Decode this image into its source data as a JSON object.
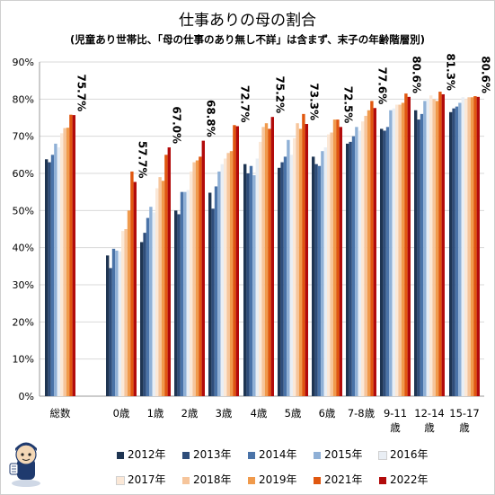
{
  "chart_data": {
    "type": "bar",
    "title": "仕事ありの母の割合",
    "subtitle": "(児童あり世帯比、「母の仕事のあり無し不詳」は含まず、末子の年齢階層別)",
    "ylim": [
      0,
      90
    ],
    "yticks": [
      "0%",
      "10%",
      "20%",
      "30%",
      "40%",
      "50%",
      "60%",
      "70%",
      "80%",
      "90%"
    ],
    "grid": true,
    "legend_placement": "bottom",
    "categories": [
      "総数",
      "0歳",
      "1歳",
      "2歳",
      "3歳",
      "4歳",
      "5歳",
      "6歳",
      "7-8歳",
      "9-11歳",
      "12-14歳",
      "15-17歳"
    ],
    "category_labels": [
      [
        "総数"
      ],
      [
        "0歳"
      ],
      [
        "1歳"
      ],
      [
        "2歳"
      ],
      [
        "3歳"
      ],
      [
        "4歳"
      ],
      [
        "5歳"
      ],
      [
        "6歳"
      ],
      [
        "7-8歳"
      ],
      [
        "9-11",
        "歳"
      ],
      [
        "12-14",
        "歳"
      ],
      [
        "15-17",
        "歳"
      ]
    ],
    "series": [
      {
        "name": "2012年",
        "color": "#1f3552",
        "values": [
          63.8,
          37.9,
          41.5,
          50.0,
          54.8,
          62.5,
          61.5,
          64.5,
          68.0,
          72.0,
          77.0,
          76.5
        ]
      },
      {
        "name": "2013年",
        "color": "#2e4d7a",
        "values": [
          63.0,
          34.5,
          44.0,
          49.0,
          50.5,
          60.0,
          63.0,
          62.5,
          68.5,
          71.5,
          74.5,
          77.5
        ]
      },
      {
        "name": "2014年",
        "color": "#4a73a8",
        "values": [
          65.0,
          39.7,
          48.0,
          55.0,
          56.5,
          62.0,
          64.5,
          62.0,
          70.0,
          72.5,
          76.0,
          78.0
        ]
      },
      {
        "name": "2015年",
        "color": "#8fb0d6",
        "values": [
          68.0,
          39.2,
          51.0,
          55.0,
          60.5,
          59.5,
          69.0,
          66.0,
          72.5,
          77.0,
          79.5,
          79.0
        ]
      },
      {
        "name": "2016年",
        "color": "#e9eef4",
        "values": [
          67.0,
          39.0,
          49.5,
          55.5,
          62.5,
          64.0,
          65.0,
          67.0,
          71.5,
          77.5,
          80.0,
          80.5
        ]
      },
      {
        "name": "2017年",
        "color": "#fbe8d7",
        "values": [
          70.8,
          44.5,
          56.0,
          60.5,
          64.0,
          68.5,
          69.5,
          70.5,
          74.0,
          78.5,
          81.0,
          80.0
        ]
      },
      {
        "name": "2018年",
        "color": "#f6c59b",
        "values": [
          72.2,
          45.0,
          59.0,
          63.0,
          65.5,
          72.5,
          73.5,
          71.0,
          75.5,
          78.5,
          80.0,
          80.5
        ]
      },
      {
        "name": "2019年",
        "color": "#f09a4c",
        "values": [
          72.3,
          50.0,
          58.0,
          63.5,
          66.0,
          73.5,
          72.0,
          74.5,
          77.0,
          79.0,
          79.5,
          80.5
        ]
      },
      {
        "name": "2021年",
        "color": "#e0570f",
        "values": [
          75.8,
          60.5,
          65.0,
          64.5,
          73.0,
          72.0,
          76.0,
          74.5,
          79.5,
          81.5,
          82.0,
          80.8
        ]
      },
      {
        "name": "2022年",
        "color": "#b20b0b",
        "values": [
          75.7,
          57.7,
          67.0,
          68.8,
          72.7,
          75.2,
          73.3,
          72.5,
          77.6,
          80.6,
          81.3,
          80.6
        ]
      }
    ],
    "data_labels": [
      "75.7%",
      "57.7%",
      "67.0%",
      "68.8%",
      "72.7%",
      "75.2%",
      "73.3%",
      "72.5%",
      "77.6%",
      "80.6%",
      "81.3%",
      "80.6%"
    ],
    "legend_rows": [
      [
        "2012年",
        "2013年",
        "2014年",
        "2015年",
        "2016年"
      ],
      [
        "2017年",
        "2018年",
        "2019年",
        "2021年",
        "2022年"
      ]
    ]
  }
}
